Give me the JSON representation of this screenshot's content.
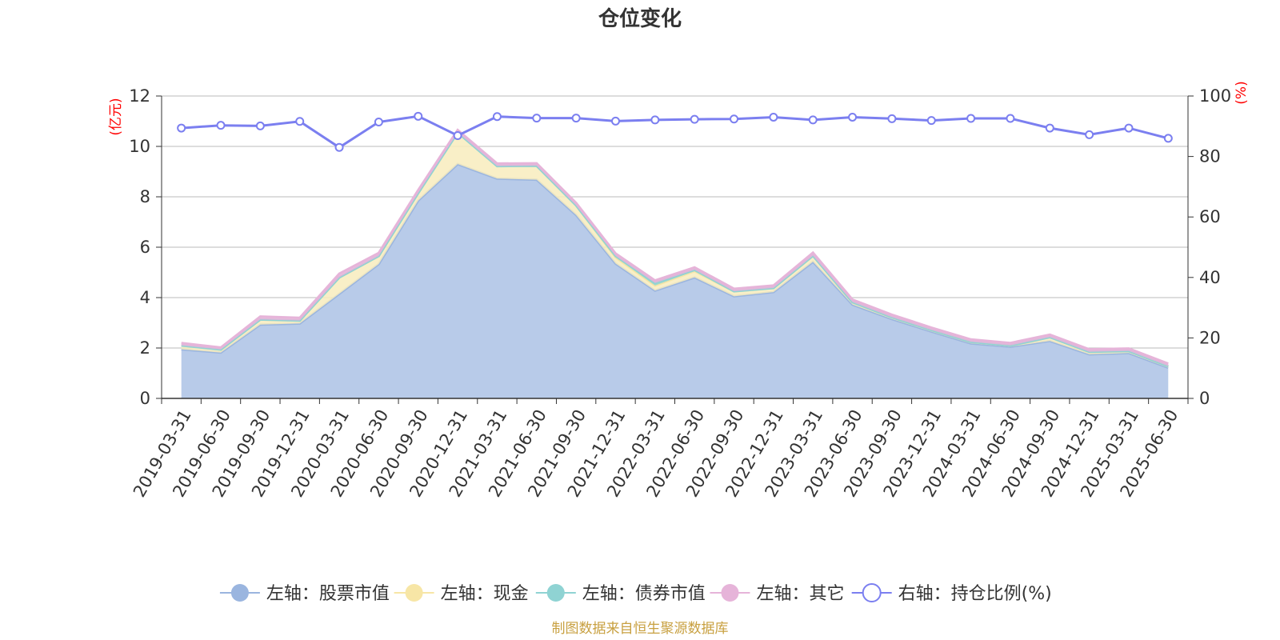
{
  "title": "仓位变化",
  "source": "制图数据来自恒生聚源数据库",
  "colors": {
    "stock": "#9ab5df",
    "stock_fill": "#b8cbe9",
    "cash": "#f7e6a6",
    "cash_fill": "#f8ecbd",
    "bond": "#8fd3d3",
    "other": "#e6b4d9",
    "ratio": "#7b7ff0",
    "axis": "#333333",
    "grid": "#bbbbbb",
    "unit": "#ff0000",
    "source": "#c8a040"
  },
  "chart_data": {
    "type": "area",
    "stacked": true,
    "x": [
      "2019-03-31",
      "2019-06-30",
      "2019-09-30",
      "2019-12-31",
      "2020-03-31",
      "2020-06-30",
      "2020-09-30",
      "2020-12-31",
      "2021-03-31",
      "2021-06-30",
      "2021-09-30",
      "2021-12-31",
      "2022-03-31",
      "2022-06-30",
      "2022-09-30",
      "2022-12-31",
      "2023-03-31",
      "2023-06-30",
      "2023-09-30",
      "2023-12-31",
      "2024-03-31",
      "2024-06-30",
      "2024-09-30",
      "2024-12-31",
      "2025-03-31",
      "2025-06-30"
    ],
    "y_left": {
      "unit": "(亿元)",
      "min": 0,
      "max": 12,
      "ticks": [
        "0",
        "2",
        "4",
        "6",
        "8",
        "10",
        "12"
      ]
    },
    "y_right": {
      "unit": "(%)",
      "min": 0,
      "max": 100,
      "ticks": [
        "0",
        "20",
        "40",
        "60",
        "80",
        "100"
      ]
    },
    "grid": true,
    "legend_position": "bottom",
    "series": [
      {
        "name": "左轴：股票市值",
        "axis": "left",
        "type": "area",
        "values": [
          1.95,
          1.82,
          2.93,
          2.97,
          4.15,
          5.33,
          7.85,
          9.3,
          8.72,
          8.68,
          7.28,
          5.35,
          4.28,
          4.8,
          4.05,
          4.22,
          5.42,
          3.72,
          3.15,
          2.65,
          2.18,
          2.05,
          2.28,
          1.75,
          1.8,
          1.22
        ]
      },
      {
        "name": "左轴：现金",
        "axis": "left",
        "type": "area",
        "values": [
          0.15,
          0.12,
          0.2,
          0.12,
          0.65,
          0.32,
          0.3,
          1.25,
          0.5,
          0.55,
          0.38,
          0.25,
          0.2,
          0.25,
          0.2,
          0.16,
          0.24,
          0.1,
          0.07,
          0.06,
          0.06,
          0.05,
          0.15,
          0.1,
          0.08,
          0.06
        ]
      },
      {
        "name": "左轴：债券市值",
        "axis": "left",
        "type": "area",
        "values": [
          0,
          0,
          0,
          0,
          0,
          0,
          0,
          0,
          0,
          0,
          0,
          0.05,
          0.1,
          0.05,
          0,
          0,
          0,
          0,
          0,
          0,
          0,
          0,
          0,
          0,
          0,
          0
        ]
      },
      {
        "name": "左轴：其它",
        "axis": "left",
        "type": "area",
        "values": [
          0.1,
          0.08,
          0.12,
          0.11,
          0.15,
          0.12,
          0.12,
          0.1,
          0.1,
          0.1,
          0.1,
          0.1,
          0.1,
          0.1,
          0.1,
          0.1,
          0.12,
          0.1,
          0.1,
          0.1,
          0.1,
          0.1,
          0.1,
          0.1,
          0.1,
          0.1
        ]
      },
      {
        "name": "右轴：持仓比例(%)",
        "axis": "right",
        "type": "line",
        "values": [
          89.4,
          90.3,
          90.1,
          91.6,
          83.0,
          91.4,
          93.3,
          86.9,
          93.2,
          92.7,
          92.7,
          91.7,
          92.1,
          92.3,
          92.4,
          93.0,
          92.1,
          93.0,
          92.5,
          91.9,
          92.6,
          92.6,
          89.4,
          87.2,
          89.4,
          86.0
        ]
      }
    ]
  }
}
